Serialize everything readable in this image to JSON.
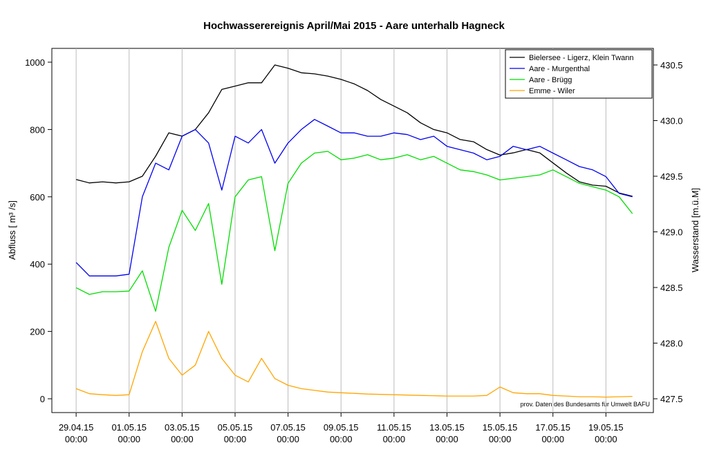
{
  "chart_data": {
    "type": "line",
    "title": "Hochwasserereignis April/Mai 2015 - Aare unterhalb Hagneck",
    "y_label": "Abfluss [ m³ /s]",
    "y2_label": "Wasserstand [m.ü.M]",
    "annotation": "prov. Daten des Bundesamts für Umwelt BAFU",
    "grid": "x",
    "legend": "top-right",
    "x": [
      "2015-04-29T00:00",
      "2015-04-29T12:00",
      "2015-04-30T00:00",
      "2015-04-30T12:00",
      "2015-05-01T00:00",
      "2015-05-01T12:00",
      "2015-05-02T00:00",
      "2015-05-02T12:00",
      "2015-05-03T00:00",
      "2015-05-03T12:00",
      "2015-05-04T00:00",
      "2015-05-04T12:00",
      "2015-05-05T00:00",
      "2015-05-05T12:00",
      "2015-05-06T00:00",
      "2015-05-06T12:00",
      "2015-05-07T00:00",
      "2015-05-07T12:00",
      "2015-05-08T00:00",
      "2015-05-08T12:00",
      "2015-05-09T00:00",
      "2015-05-09T12:00",
      "2015-05-10T00:00",
      "2015-05-10T12:00",
      "2015-05-11T00:00",
      "2015-05-11T12:00",
      "2015-05-12T00:00",
      "2015-05-12T12:00",
      "2015-05-13T00:00",
      "2015-05-13T12:00",
      "2015-05-14T00:00",
      "2015-05-14T12:00",
      "2015-05-15T00:00",
      "2015-05-15T12:00",
      "2015-05-16T00:00",
      "2015-05-16T12:00",
      "2015-05-17T00:00",
      "2015-05-17T12:00",
      "2015-05-18T00:00",
      "2015-05-18T12:00",
      "2015-05-19T00:00",
      "2015-05-19T12:00",
      "2015-05-20T00:00"
    ],
    "xlim": [
      "2015-04-28T02:00",
      "2015-05-20T19:00"
    ],
    "xticks": [
      {
        "value": "2015-04-29T00:00",
        "label": "29.04.15\n00:00"
      },
      {
        "value": "2015-05-01T00:00",
        "label": "01.05.15\n00:00"
      },
      {
        "value": "2015-05-03T00:00",
        "label": "03.05.15\n00:00"
      },
      {
        "value": "2015-05-05T00:00",
        "label": "05.05.15\n00:00"
      },
      {
        "value": "2015-05-07T00:00",
        "label": "07.05.15\n00:00"
      },
      {
        "value": "2015-05-09T00:00",
        "label": "09.05.15\n00:00"
      },
      {
        "value": "2015-05-11T00:00",
        "label": "11.05.15\n00:00"
      },
      {
        "value": "2015-05-13T00:00",
        "label": "13.05.15\n00:00"
      },
      {
        "value": "2015-05-15T00:00",
        "label": "15.05.15\n00:00"
      },
      {
        "value": "2015-05-17T00:00",
        "label": "17.05.15\n00:00"
      },
      {
        "value": "2015-05-19T00:00",
        "label": "19.05.15\n00:00"
      }
    ],
    "ylim": [
      -41,
      1041
    ],
    "yticks": [
      0,
      200,
      400,
      600,
      800,
      1000
    ],
    "y2lim": [
      427.376,
      430.649
    ],
    "y2ticks": [
      427.5,
      {
        "value": 428,
        "label": "428.0"
      },
      428.5,
      {
        "value": 429,
        "label": "429.0"
      },
      429.5,
      {
        "value": 430,
        "label": "430.0"
      },
      430.5
    ],
    "series": [
      {
        "name": "Bielersee - Ligerz, Klein Twann",
        "color": "#000000",
        "axis": "y2",
        "values": [
          429.47,
          429.44,
          429.45,
          429.44,
          429.45,
          429.5,
          429.68,
          429.89,
          429.86,
          429.92,
          430.07,
          430.28,
          430.31,
          430.34,
          430.34,
          430.5,
          430.47,
          430.43,
          430.42,
          430.4,
          430.37,
          430.33,
          430.27,
          430.19,
          430.13,
          430.07,
          429.98,
          429.92,
          429.89,
          429.83,
          429.81,
          429.74,
          429.69,
          429.71,
          429.74,
          429.71,
          429.62,
          429.53,
          429.45,
          429.42,
          429.41,
          429.35,
          429.32
        ]
      },
      {
        "name": "Aare - Murgenthal",
        "color": "#0000ee",
        "values": [
          405,
          365,
          365,
          365,
          370,
          600,
          700,
          680,
          780,
          800,
          760,
          620,
          780,
          760,
          800,
          700,
          760,
          800,
          830,
          810,
          790,
          790,
          780,
          780,
          790,
          785,
          770,
          780,
          750,
          740,
          730,
          710,
          720,
          750,
          740,
          750,
          730,
          710,
          690,
          680,
          660,
          610,
          600
        ]
      },
      {
        "name": "Aare - Brügg",
        "color": "#00dd00",
        "values": [
          330,
          310,
          318,
          318,
          320,
          380,
          260,
          450,
          560,
          500,
          580,
          340,
          600,
          650,
          660,
          440,
          640,
          700,
          730,
          735,
          710,
          715,
          725,
          710,
          715,
          725,
          710,
          720,
          700,
          680,
          675,
          665,
          650,
          655,
          660,
          665,
          680,
          660,
          640,
          630,
          620,
          600,
          550
        ]
      },
      {
        "name": "Emme - Wiler",
        "color": "#ffa500",
        "values": [
          30,
          15,
          12,
          10,
          12,
          140,
          230,
          120,
          70,
          100,
          200,
          120,
          70,
          50,
          120,
          60,
          40,
          30,
          25,
          20,
          18,
          16,
          14,
          13,
          12,
          11,
          10,
          9,
          8,
          8,
          8,
          10,
          35,
          18,
          15,
          15,
          10,
          8,
          6,
          6,
          5,
          6,
          7
        ]
      }
    ]
  }
}
